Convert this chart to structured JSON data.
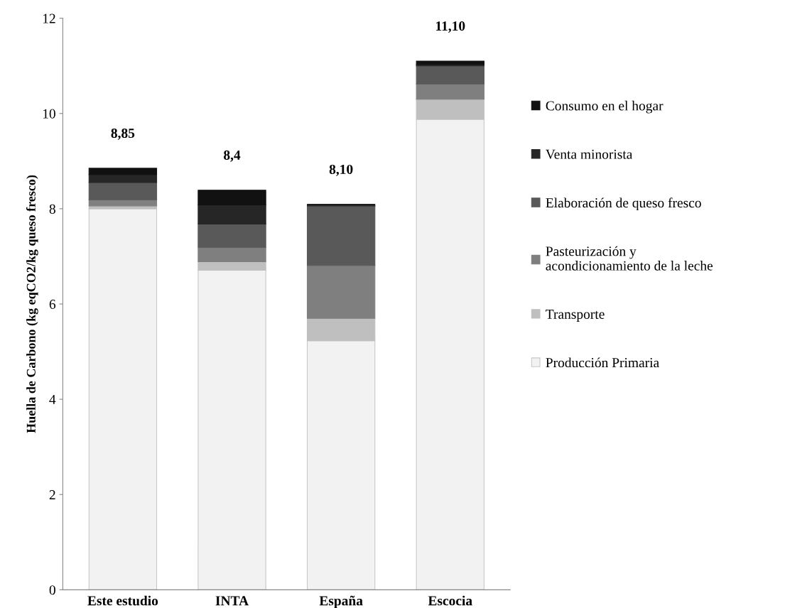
{
  "chart_data": {
    "type": "bar",
    "stacked": true,
    "ylabel": "Huella de Carbono (kg eqCO2/kg queso fresco)",
    "categories": [
      "Este estudio",
      "INTA",
      "España",
      "Escocia"
    ],
    "series": [
      {
        "name": "Producción Primaria",
        "color": "#f2f2f2",
        "values": [
          8.0,
          6.71,
          5.23,
          9.88
        ]
      },
      {
        "name": "Transporte",
        "color": "#bfbfbf",
        "values": [
          0.06,
          0.18,
          0.47,
          0.42
        ]
      },
      {
        "name": "Pasteurización y\nacondicionamiento de la leche",
        "color": "#7f7f7f",
        "values": [
          0.13,
          0.3,
          1.11,
          0.32
        ]
      },
      {
        "name": "Elaboración de queso fresco",
        "color": "#595959",
        "values": [
          0.36,
          0.49,
          1.25,
          0.38
        ]
      },
      {
        "name": "Venta minorista",
        "color": "#262626",
        "values": [
          0.17,
          0.4,
          0.03,
          0.03
        ]
      },
      {
        "name": "Consumo en el hogar",
        "color": "#111111",
        "values": [
          0.13,
          0.31,
          0.0,
          0.07
        ]
      }
    ],
    "totals": [
      "8,85",
      "8,4",
      "8,10",
      "11,10"
    ],
    "ylim": [
      0,
      12
    ],
    "yticks": [
      0,
      2,
      4,
      6,
      8,
      10,
      12
    ],
    "grid": false,
    "legend": "right"
  }
}
